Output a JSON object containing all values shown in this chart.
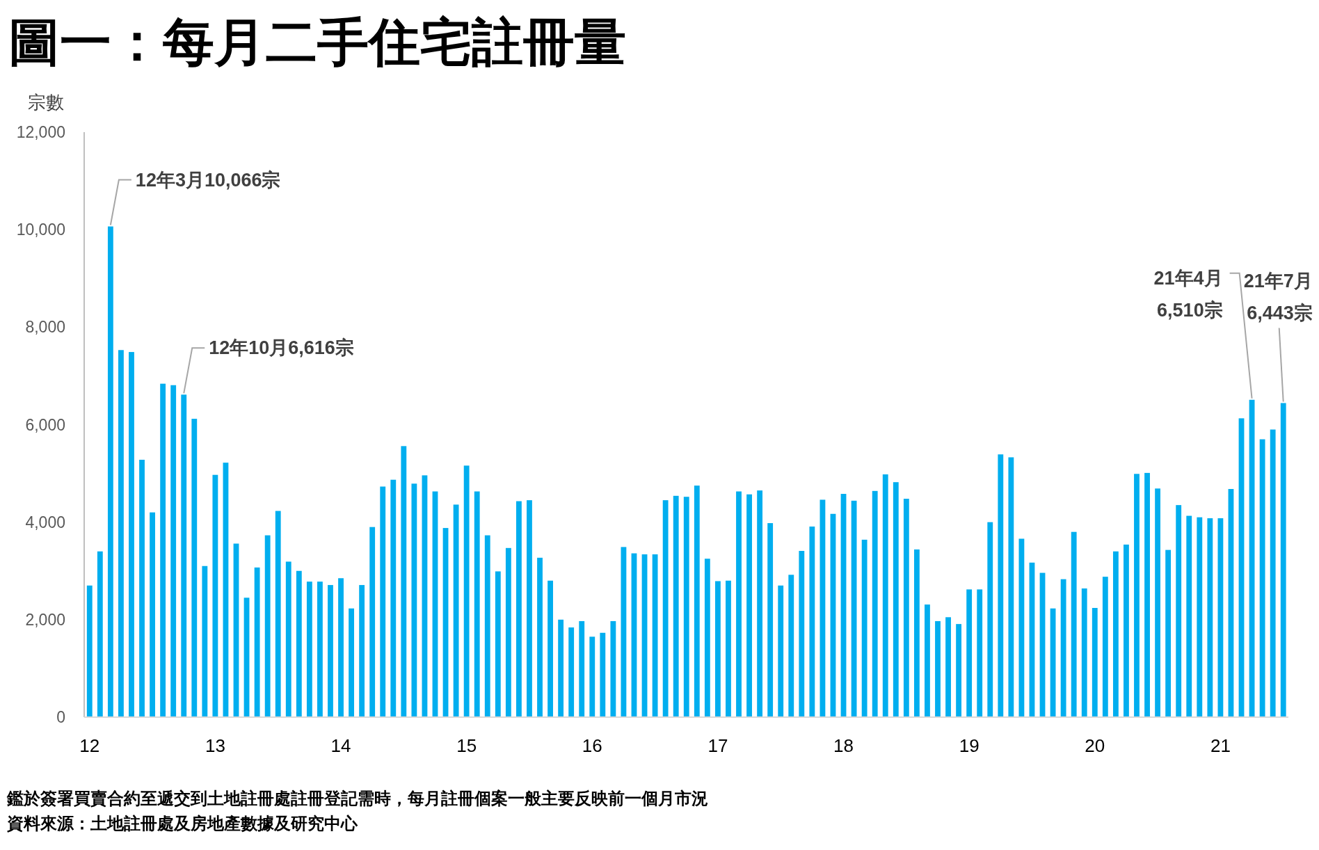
{
  "chart_data": {
    "type": "bar",
    "title": "圖一：每月二手住宅註冊量",
    "ylabel": "宗數",
    "color": "#00aeef",
    "x": [
      "2012-01",
      "2012-02",
      "2012-03",
      "2012-04",
      "2012-05",
      "2012-06",
      "2012-07",
      "2012-08",
      "2012-09",
      "2012-10",
      "2012-11",
      "2012-12",
      "2013-01",
      "2013-02",
      "2013-03",
      "2013-04",
      "2013-05",
      "2013-06",
      "2013-07",
      "2013-08",
      "2013-09",
      "2013-10",
      "2013-11",
      "2013-12",
      "2014-01",
      "2014-02",
      "2014-03",
      "2014-04",
      "2014-05",
      "2014-06",
      "2014-07",
      "2014-08",
      "2014-09",
      "2014-10",
      "2014-11",
      "2014-12",
      "2015-01",
      "2015-02",
      "2015-03",
      "2015-04",
      "2015-05",
      "2015-06",
      "2015-07",
      "2015-08",
      "2015-09",
      "2015-10",
      "2015-11",
      "2015-12",
      "2016-01",
      "2016-02",
      "2016-03",
      "2016-04",
      "2016-05",
      "2016-06",
      "2016-07",
      "2016-08",
      "2016-09",
      "2016-10",
      "2016-11",
      "2016-12",
      "2017-01",
      "2017-02",
      "2017-03",
      "2017-04",
      "2017-05",
      "2017-06",
      "2017-07",
      "2017-08",
      "2017-09",
      "2017-10",
      "2017-11",
      "2017-12",
      "2018-01",
      "2018-02",
      "2018-03",
      "2018-04",
      "2018-05",
      "2018-06",
      "2018-07",
      "2018-08",
      "2018-09",
      "2018-10",
      "2018-11",
      "2018-12",
      "2019-01",
      "2019-02",
      "2019-03",
      "2019-04",
      "2019-05",
      "2019-06",
      "2019-07",
      "2019-08",
      "2019-09",
      "2019-10",
      "2019-11",
      "2019-12",
      "2020-01",
      "2020-02",
      "2020-03",
      "2020-04",
      "2020-05",
      "2020-06",
      "2020-07",
      "2020-08",
      "2020-09",
      "2020-10",
      "2020-11",
      "2020-12",
      "2021-01",
      "2021-02",
      "2021-03",
      "2021-04",
      "2021-05",
      "2021-06",
      "2021-07"
    ],
    "values": [
      2700,
      3400,
      10066,
      7530,
      7490,
      5280,
      4200,
      6840,
      6810,
      6616,
      6120,
      3100,
      4970,
      5220,
      3560,
      2450,
      3070,
      3730,
      4230,
      3190,
      3000,
      2780,
      2780,
      2710,
      2850,
      2230,
      2710,
      3900,
      4730,
      4870,
      5560,
      4790,
      4960,
      4630,
      3880,
      4360,
      5160,
      4630,
      3730,
      2990,
      3470,
      4430,
      4450,
      3270,
      2800,
      2000,
      1840,
      1970,
      1650,
      1730,
      1970,
      3490,
      3360,
      3340,
      3340,
      4450,
      4540,
      4520,
      4750,
      3250,
      2790,
      2800,
      4630,
      4570,
      4650,
      3980,
      2700,
      2920,
      3410,
      3910,
      4460,
      4170,
      4580,
      4440,
      3640,
      4640,
      4980,
      4820,
      4480,
      3440,
      2310,
      1970,
      2050,
      1910,
      2620,
      2620,
      4000,
      5390,
      5330,
      3660,
      3170,
      2960,
      2230,
      2830,
      3800,
      2640,
      2240,
      2880,
      3400,
      3540,
      4990,
      5010,
      4690,
      3430,
      4350,
      4130,
      4100,
      4080,
      4080,
      4680,
      6130,
      6510,
      5700,
      5900,
      6443
    ],
    "xlim": [
      "2011-12-16",
      "2021-07-16"
    ],
    "xticks": [
      {
        "value": "2012-01",
        "label": "12"
      },
      {
        "value": "2013-01",
        "label": "13"
      },
      {
        "value": "2014-01",
        "label": "14"
      },
      {
        "value": "2015-01",
        "label": "15"
      },
      {
        "value": "2016-01",
        "label": "16"
      },
      {
        "value": "2017-01",
        "label": "17"
      },
      {
        "value": "2018-01",
        "label": "18"
      },
      {
        "value": "2019-01",
        "label": "19"
      },
      {
        "value": "2020-01",
        "label": "20"
      },
      {
        "value": "2021-01",
        "label": "21"
      }
    ],
    "ylim": [
      0,
      12000
    ],
    "yticks": [
      0,
      {
        "value": 2000,
        "label": "2,000"
      },
      {
        "value": 4000,
        "label": "4,000"
      },
      {
        "value": 6000,
        "label": "6,000"
      },
      {
        "value": 8000,
        "label": "8,000"
      },
      {
        "value": 10000,
        "label": "10,000"
      },
      {
        "value": 12000,
        "label": "12,000"
      }
    ],
    "grid": false,
    "annotations": [
      {
        "text": "12年3月10,066宗",
        "x": "2012-03",
        "y": 10066
      },
      {
        "text": "12年10月6,616宗",
        "x": "2012-10",
        "y": 6616
      },
      {
        "text": "21年4月 6,510宗",
        "x": "2021-04",
        "y": 6510
      },
      {
        "text": "21年7月 6,443宗",
        "x": "2021-07",
        "y": 6443
      },
      "鑑於簽署買賣合約至遞交到土地註冊處註冊登記需時，每月註冊個案一般主要反映前一個月市況",
      "資料來源：土地註冊處及房地產數據及研究中心"
    ]
  }
}
